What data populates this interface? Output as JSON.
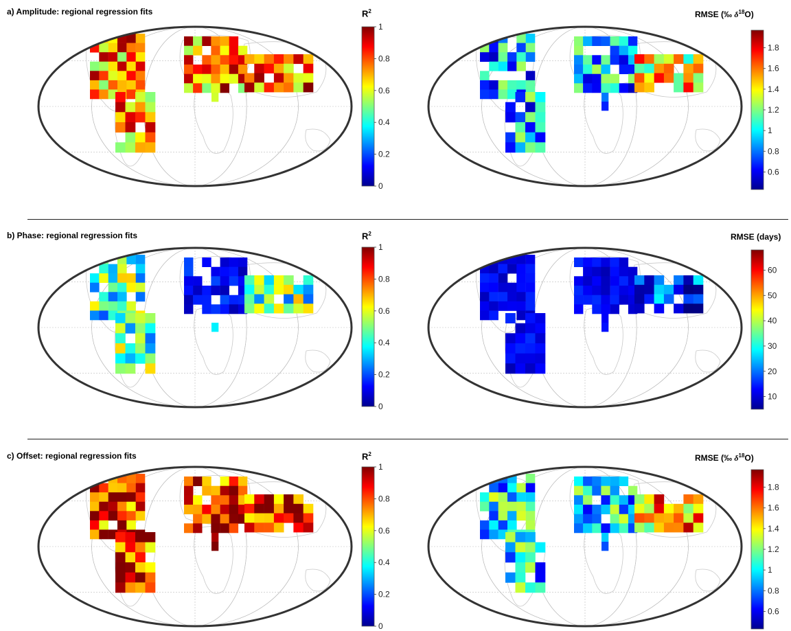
{
  "rows": [
    {
      "title": "a) Amplitude: regional regression fits",
      "left_colorbar": {
        "label": "R",
        "label_sup": "2",
        "min": 0,
        "max": 1,
        "ticks": [
          "0",
          "0.2",
          "0.4",
          "0.6",
          "0.8",
          "1"
        ]
      },
      "right_colorbar": {
        "label_pre": "RMSE (‰ ",
        "label_delta": "δ",
        "label_sup": "18",
        "label_post": "O)",
        "min": 0.43,
        "max": 1.97,
        "ticks": [
          "0.6",
          "0.8",
          "1",
          "1.2",
          "1.4",
          "1.6",
          "1.8"
        ]
      }
    },
    {
      "title": "b) Phase: regional regression fits",
      "left_colorbar": {
        "label": "R",
        "label_sup": "2",
        "min": 0,
        "max": 1,
        "ticks": [
          "0",
          "0.2",
          "0.4",
          "0.6",
          "0.8",
          "1"
        ]
      },
      "right_colorbar": {
        "label_pre": "RMSE (days)",
        "min": 5,
        "max": 68,
        "ticks": [
          "10",
          "20",
          "30",
          "40",
          "50",
          "60"
        ]
      }
    },
    {
      "title": "c) Offset:  regional regression fits",
      "left_colorbar": {
        "label": "R",
        "label_sup": "2",
        "min": 0,
        "max": 1,
        "ticks": [
          "0",
          "0.2",
          "0.4",
          "0.6",
          "0.8",
          "1"
        ]
      },
      "right_colorbar": {
        "label_pre": "RMSE (‰ ",
        "label_delta": "δ",
        "label_sup": "18",
        "label_post": "O)",
        "min": 0.43,
        "max": 1.97,
        "ticks": [
          "0.6",
          "0.8",
          "1",
          "1.2",
          "1.4",
          "1.6",
          "1.8"
        ]
      }
    }
  ],
  "colormap": "jet",
  "region_values": {
    "a_left": {
      "NA": [
        0.8,
        0.85,
        0.9,
        0.75,
        0.6,
        0.85,
        0.9,
        0.5,
        0.3,
        0.8
      ],
      "SA": [
        0.4,
        0.5,
        0.7,
        0.75,
        0.8,
        0.85,
        0.1
      ],
      "EU": [
        0.55,
        0.6,
        0.45,
        0.7,
        0.8,
        0.5,
        0.6,
        0.4,
        0.35
      ],
      "AF": [
        0.85,
        0.9
      ],
      "AS": [
        0.6,
        0.4,
        0.2,
        0.7,
        0.5,
        0.1,
        0.6,
        0.55,
        0.45,
        0.3
      ]
    },
    "a_right": {
      "NA": [
        0.9,
        0.85,
        0.95,
        1.0,
        0.8,
        0.9,
        1.1,
        1.0,
        0.85,
        0.95
      ],
      "SA": [
        0.9,
        0.8,
        0.75,
        0.85,
        0.7,
        0.6,
        0.65
      ],
      "EU": [
        0.7,
        0.6,
        0.55,
        0.65,
        0.75,
        0.9,
        0.6,
        0.7,
        1.2
      ],
      "AF": [
        0.6,
        0.55
      ],
      "AS": [
        1.9,
        1.7,
        1.5,
        1.3,
        1.2,
        1.0,
        0.9,
        0.8,
        1.6,
        1.1
      ]
    }
  }
}
